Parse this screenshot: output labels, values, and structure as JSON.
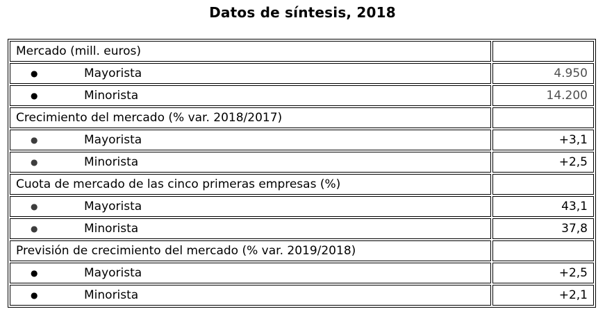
{
  "page": {
    "title": "Datos de síntesis, 2018"
  },
  "colors": {
    "border": "#000000",
    "text": "#000000",
    "muted_value": "#4f4f4f",
    "muted_bullet": "#3d3d3d",
    "background": "#ffffff"
  },
  "table": {
    "bullet_glyph": "●",
    "columns": [
      "concepto",
      "valor"
    ],
    "rows": [
      {
        "type": "section",
        "label": "Mercado (mill. euros)",
        "value": "",
        "value_muted": false,
        "bullet_muted": false
      },
      {
        "type": "item",
        "label": "Mayorista",
        "value": "4.950",
        "value_muted": true,
        "bullet_muted": false
      },
      {
        "type": "item",
        "label": "Minorista",
        "value": "14.200",
        "value_muted": true,
        "bullet_muted": false
      },
      {
        "type": "section",
        "label": "Crecimiento del mercado (% var. 2018/2017)",
        "value": "",
        "value_muted": false,
        "bullet_muted": false
      },
      {
        "type": "item",
        "label": "Mayorista",
        "value": "+3,1",
        "value_muted": false,
        "bullet_muted": true
      },
      {
        "type": "item",
        "label": "Minorista",
        "value": "+2,5",
        "value_muted": false,
        "bullet_muted": true
      },
      {
        "type": "section",
        "label": "Cuota de mercado de las cinco primeras empresas (%)",
        "value": "",
        "value_muted": false,
        "bullet_muted": false
      },
      {
        "type": "item",
        "label": "Mayorista",
        "value": "43,1",
        "value_muted": false,
        "bullet_muted": true
      },
      {
        "type": "item",
        "label": "Minorista",
        "value": "37,8",
        "value_muted": false,
        "bullet_muted": true
      },
      {
        "type": "section",
        "label": "Previsión de crecimiento del mercado (% var. 2019/2018)",
        "value": "",
        "value_muted": false,
        "bullet_muted": false
      },
      {
        "type": "item",
        "label": "Mayorista",
        "value": "+2,5",
        "value_muted": false,
        "bullet_muted": false
      },
      {
        "type": "item",
        "label": "Minorista",
        "value": "+2,1",
        "value_muted": false,
        "bullet_muted": false
      }
    ]
  }
}
